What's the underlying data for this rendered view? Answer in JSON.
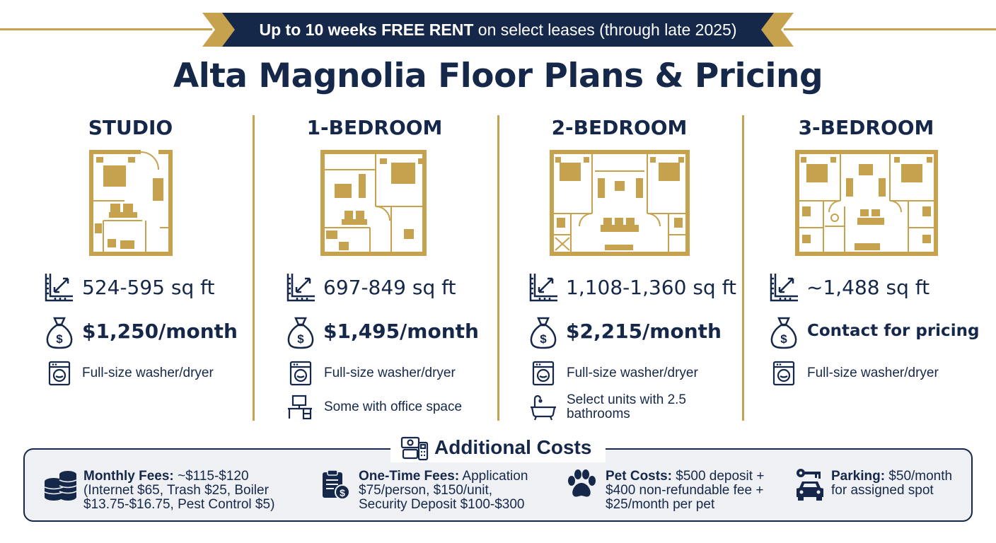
{
  "banner": {
    "prefix": "Up to 10 weeks ",
    "highlight": "FREE RENT",
    "suffix": " on select leases (through late 2025)"
  },
  "title": "Alta Magnolia Floor Plans & Pricing",
  "colors": {
    "navy": "#16284a",
    "gold": "#c6a24f",
    "panel": "#eef0f4"
  },
  "plans": [
    {
      "name": "STUDIO",
      "sqft": "524-595 sq ft",
      "price": "$1,250/month",
      "features": [
        {
          "icon": "washer-icon",
          "text": "Full-size washer/dryer"
        }
      ]
    },
    {
      "name": "1-BEDROOM",
      "sqft": "697-849 sq ft",
      "price": "$1,495/month",
      "features": [
        {
          "icon": "washer-icon",
          "text": "Full-size washer/dryer"
        },
        {
          "icon": "desk-icon",
          "text": "Some with office space"
        }
      ]
    },
    {
      "name": "2-BEDROOM",
      "sqft": "1,108-1,360 sq ft",
      "price": "$2,215/month",
      "features": [
        {
          "icon": "washer-icon",
          "text": "Full-size washer/dryer"
        },
        {
          "icon": "bathtub-icon",
          "text_line1": "Select units with 2.5",
          "text_line2": "bathrooms"
        }
      ]
    },
    {
      "name": "3-BEDROOM",
      "sqft": "~1,488 sq ft",
      "price": "Contact for pricing",
      "features": [
        {
          "icon": "washer-icon",
          "text": "Full-size washer/dryer"
        }
      ]
    }
  ],
  "additional_costs": {
    "title": "Additional Costs",
    "items": [
      {
        "icon": "coin-stack-icon",
        "label": "Monthly Fees:",
        "line1": " ~$115-$120",
        "line2": "(Internet $65, Trash $25, Boiler",
        "line3": "$13.75-$16.75, Pest Control $5)"
      },
      {
        "icon": "clipboard-dollar-icon",
        "label": "One-Time Fees:",
        "line1": " Application",
        "line2": "$75/person, $150/unit,",
        "line3": "Security Deposit $100-$300"
      },
      {
        "icon": "paw-icon",
        "label": "Pet Costs:",
        "line1": " $500 deposit +",
        "line2": "$400 non-refundable fee +",
        "line3": "$25/month per pet"
      },
      {
        "icon": "car-key-icon",
        "label": "Parking:",
        "line1": " $50/month",
        "line2": "for assigned spot",
        "line3": ""
      }
    ]
  }
}
